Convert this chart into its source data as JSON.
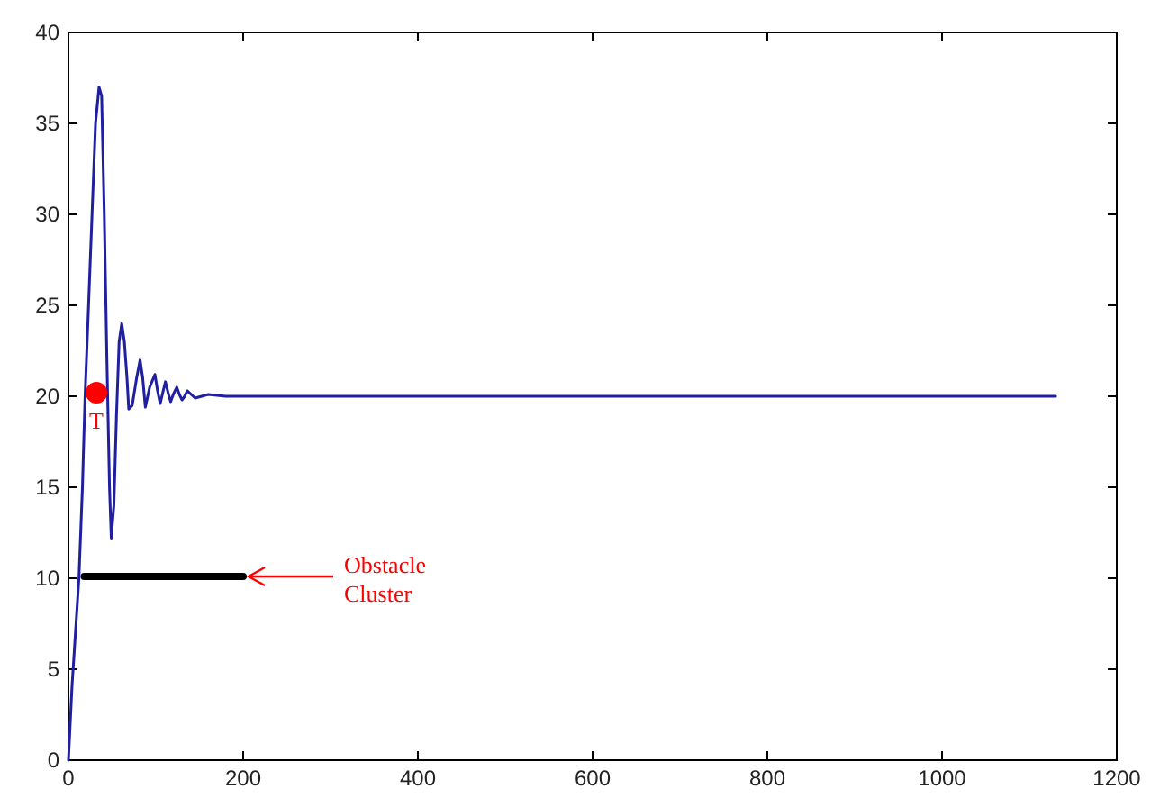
{
  "chart_data": {
    "type": "line",
    "xlim": [
      0,
      1200
    ],
    "ylim": [
      0,
      40
    ],
    "xticks": [
      0,
      200,
      400,
      600,
      800,
      1000,
      1200
    ],
    "yticks": [
      0,
      5,
      10,
      15,
      20,
      25,
      30,
      35,
      40
    ],
    "grid": false,
    "line_style": "solid",
    "series": [
      {
        "color": "#1f1fa0",
        "x": [
          0,
          4,
          8,
          12,
          16,
          19,
          23,
          27,
          31,
          35,
          38,
          41,
          44,
          47,
          49,
          52,
          55,
          58,
          61,
          64,
          67,
          69,
          73,
          78,
          82,
          85,
          88,
          93,
          99,
          102,
          105,
          108,
          111,
          114,
          117,
          120,
          124,
          127,
          130,
          133,
          136,
          145,
          160,
          180,
          1130
        ],
        "values": [
          0,
          4,
          7,
          10,
          15,
          20,
          25,
          30,
          35,
          37,
          36.5,
          30,
          22,
          15,
          12.2,
          14,
          19,
          23,
          24,
          23,
          21,
          19.3,
          19.5,
          21,
          22,
          21,
          19.4,
          20.5,
          21.2,
          20.3,
          19.6,
          20.2,
          20.8,
          20.2,
          19.7,
          20.1,
          20.5,
          20.1,
          19.8,
          20,
          20.3,
          19.9,
          20.1,
          20,
          20
        ]
      },
      {
        "color": "#000000",
        "x": [
          18,
          200
        ],
        "values": [
          10.1,
          10.1
        ]
      },
      {
        "type": "scatter",
        "marker": "circle",
        "color": "#ff0000",
        "x": [
          32
        ],
        "values": [
          20.2
        ]
      }
    ],
    "annotations": [
      {
        "text": "T",
        "x": 32,
        "y": 20.2
      },
      "Obstacle Cluster"
    ]
  }
}
